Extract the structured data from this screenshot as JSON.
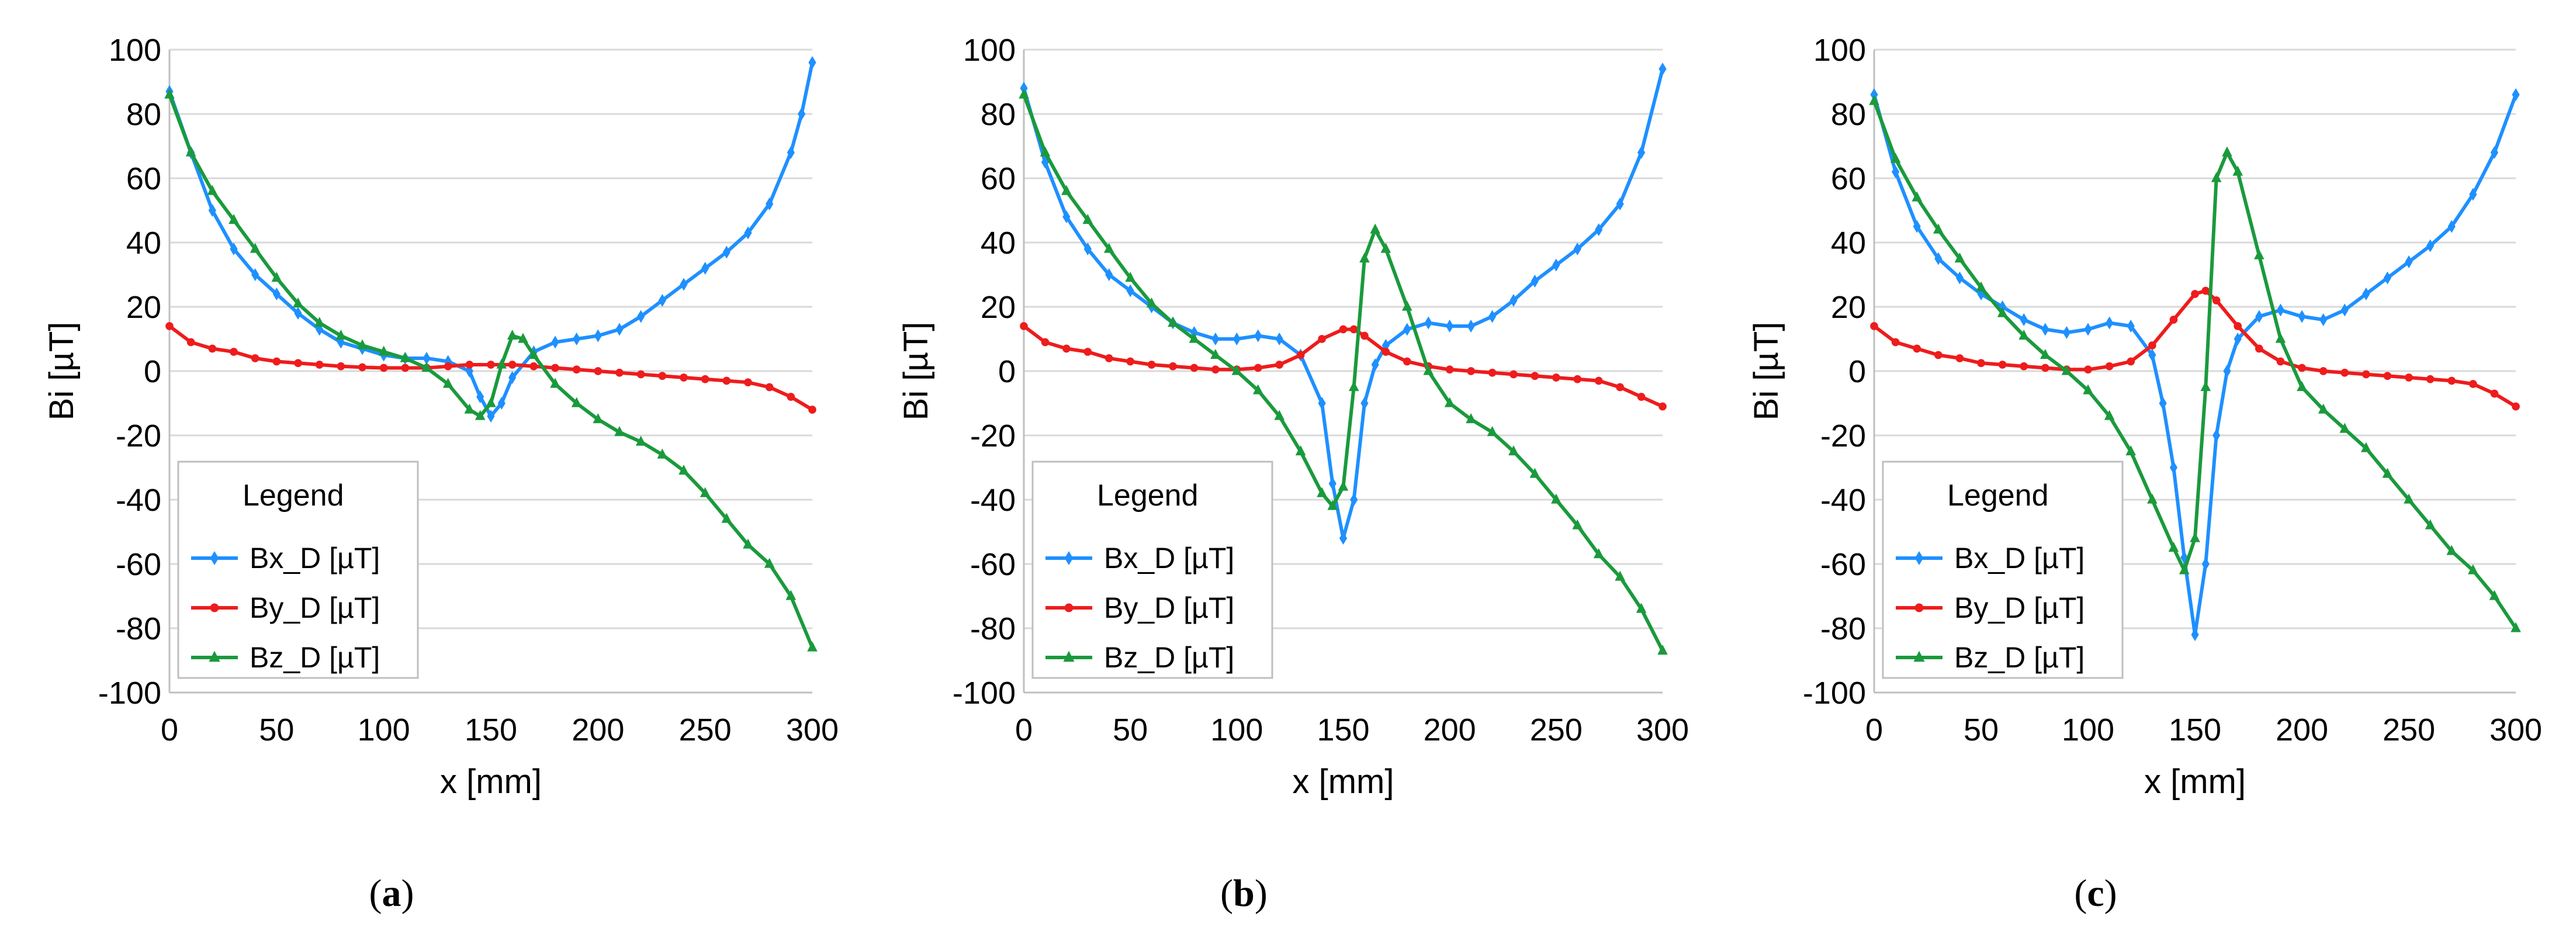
{
  "colors": {
    "bx": "#1e90ff",
    "by": "#ee1c1c",
    "bz": "#1a9a3c",
    "grid": "#d9d9d9",
    "axis": "#bfbfbf"
  },
  "chart_data": [
    {
      "type": "line",
      "panel_label": "a",
      "xlabel": "x [mm]",
      "ylabel": "Bi [µT]",
      "xlim": [
        0,
        300
      ],
      "ylim": [
        -100,
        100
      ],
      "xticks": [
        "0",
        "50",
        "100",
        "150",
        "200",
        "250",
        "300"
      ],
      "yticks": [
        "100",
        "80",
        "60",
        "40",
        "20",
        "0",
        "-20",
        "-40",
        "-60",
        "-80",
        "-100"
      ],
      "grid": true,
      "legend": {
        "title": "Legend",
        "position": "bottom-left"
      },
      "series": [
        {
          "name": "Bx_D [µT]",
          "marker": "diamond",
          "x": [
            0,
            10,
            20,
            30,
            40,
            50,
            60,
            70,
            80,
            90,
            100,
            110,
            120,
            130,
            140,
            145,
            150,
            155,
            160,
            170,
            180,
            190,
            200,
            210,
            220,
            230,
            240,
            250,
            260,
            270,
            280,
            290,
            295,
            300
          ],
          "y": [
            87,
            68,
            50,
            38,
            30,
            24,
            18,
            13,
            9,
            7,
            5,
            4,
            4,
            3,
            0,
            -8,
            -14,
            -10,
            -2,
            6,
            9,
            10,
            11,
            13,
            17,
            22,
            27,
            32,
            37,
            43,
            52,
            68,
            80,
            96
          ]
        },
        {
          "name": "By_D [µT]",
          "marker": "circle",
          "x": [
            0,
            10,
            20,
            30,
            40,
            50,
            60,
            70,
            80,
            90,
            100,
            110,
            120,
            130,
            140,
            150,
            160,
            170,
            180,
            190,
            200,
            210,
            220,
            230,
            240,
            250,
            260,
            270,
            280,
            290,
            300
          ],
          "y": [
            14,
            9,
            7,
            6,
            4,
            3,
            2.5,
            2,
            1.5,
            1.2,
            1,
            1,
            1,
            1.5,
            2,
            2,
            2,
            1.5,
            1,
            0.5,
            0,
            -0.5,
            -1,
            -1.5,
            -2,
            -2.5,
            -3,
            -3.5,
            -5,
            -8,
            -12
          ]
        },
        {
          "name": "Bz_D [µT]",
          "marker": "triangle",
          "x": [
            0,
            10,
            20,
            30,
            40,
            50,
            60,
            70,
            80,
            90,
            100,
            110,
            120,
            130,
            140,
            145,
            150,
            155,
            160,
            165,
            170,
            180,
            190,
            200,
            210,
            220,
            230,
            240,
            250,
            260,
            270,
            280,
            290,
            300
          ],
          "y": [
            86,
            68,
            56,
            47,
            38,
            29,
            21,
            15,
            11,
            8,
            6,
            4,
            1,
            -4,
            -12,
            -14,
            -10,
            2,
            11,
            10,
            5,
            -4,
            -10,
            -15,
            -19,
            -22,
            -26,
            -31,
            -38,
            -46,
            -54,
            -60,
            -70,
            -86
          ]
        }
      ]
    },
    {
      "type": "line",
      "panel_label": "b",
      "xlabel": "x [mm]",
      "ylabel": "Bi [µT]",
      "xlim": [
        0,
        300
      ],
      "ylim": [
        -100,
        100
      ],
      "xticks": [
        "0",
        "50",
        "100",
        "150",
        "200",
        "250",
        "300"
      ],
      "yticks": [
        "100",
        "80",
        "60",
        "40",
        "20",
        "0",
        "-20",
        "-40",
        "-60",
        "-80",
        "-100"
      ],
      "grid": true,
      "legend": {
        "title": "Legend",
        "position": "bottom-left"
      },
      "series": [
        {
          "name": "Bx_D [µT]",
          "marker": "diamond",
          "x": [
            0,
            10,
            20,
            30,
            40,
            50,
            60,
            70,
            80,
            90,
            100,
            110,
            120,
            130,
            140,
            145,
            150,
            155,
            160,
            165,
            170,
            180,
            190,
            200,
            210,
            220,
            230,
            240,
            250,
            260,
            270,
            280,
            290,
            300
          ],
          "y": [
            88,
            65,
            48,
            38,
            30,
            25,
            20,
            15,
            12,
            10,
            10,
            11,
            10,
            5,
            -10,
            -35,
            -52,
            -40,
            -10,
            2,
            8,
            13,
            15,
            14,
            14,
            17,
            22,
            28,
            33,
            38,
            44,
            52,
            68,
            94
          ]
        },
        {
          "name": "By_D [µT]",
          "marker": "circle",
          "x": [
            0,
            10,
            20,
            30,
            40,
            50,
            60,
            70,
            80,
            90,
            100,
            110,
            120,
            130,
            140,
            150,
            155,
            160,
            170,
            180,
            190,
            200,
            210,
            220,
            230,
            240,
            250,
            260,
            270,
            280,
            290,
            300
          ],
          "y": [
            14,
            9,
            7,
            6,
            4,
            3,
            2,
            1.5,
            1,
            0.5,
            0.5,
            1,
            2,
            5,
            10,
            13,
            13,
            11,
            6,
            3,
            1.5,
            0.5,
            0,
            -0.5,
            -1,
            -1.5,
            -2,
            -2.5,
            -3,
            -5,
            -8,
            -11
          ]
        },
        {
          "name": "Bz_D [µT]",
          "marker": "triangle",
          "x": [
            0,
            10,
            20,
            30,
            40,
            50,
            60,
            70,
            80,
            90,
            100,
            110,
            120,
            130,
            140,
            145,
            150,
            155,
            160,
            165,
            170,
            180,
            190,
            200,
            210,
            220,
            230,
            240,
            250,
            260,
            270,
            280,
            290,
            300
          ],
          "y": [
            86,
            68,
            56,
            47,
            38,
            29,
            21,
            15,
            10,
            5,
            0,
            -6,
            -14,
            -25,
            -38,
            -42,
            -36,
            -5,
            35,
            44,
            38,
            20,
            0,
            -10,
            -15,
            -19,
            -25,
            -32,
            -40,
            -48,
            -57,
            -64,
            -74,
            -87
          ]
        }
      ]
    },
    {
      "type": "line",
      "panel_label": "c",
      "xlabel": "x [mm]",
      "ylabel": "Bi [µT]",
      "xlim": [
        0,
        300
      ],
      "ylim": [
        -100,
        100
      ],
      "xticks": [
        "0",
        "50",
        "100",
        "150",
        "200",
        "250",
        "300"
      ],
      "yticks": [
        "100",
        "80",
        "60",
        "40",
        "20",
        "0",
        "-20",
        "-40",
        "-60",
        "-80",
        "-100"
      ],
      "grid": true,
      "legend": {
        "title": "Legend",
        "position": "bottom-left"
      },
      "series": [
        {
          "name": "Bx_D [µT]",
          "marker": "diamond",
          "x": [
            0,
            10,
            20,
            30,
            40,
            50,
            60,
            70,
            80,
            90,
            100,
            110,
            120,
            130,
            135,
            140,
            145,
            150,
            155,
            160,
            165,
            170,
            180,
            190,
            200,
            210,
            220,
            230,
            240,
            250,
            260,
            270,
            280,
            290,
            300
          ],
          "y": [
            86,
            62,
            45,
            35,
            29,
            24,
            20,
            16,
            13,
            12,
            13,
            15,
            14,
            5,
            -10,
            -30,
            -58,
            -82,
            -60,
            -20,
            0,
            10,
            17,
            19,
            17,
            16,
            19,
            24,
            29,
            34,
            39,
            45,
            55,
            68,
            86
          ]
        },
        {
          "name": "By_D [µT]",
          "marker": "circle",
          "x": [
            0,
            10,
            20,
            30,
            40,
            50,
            60,
            70,
            80,
            90,
            100,
            110,
            120,
            130,
            140,
            150,
            155,
            160,
            170,
            180,
            190,
            200,
            210,
            220,
            230,
            240,
            250,
            260,
            270,
            280,
            290,
            300
          ],
          "y": [
            14,
            9,
            7,
            5,
            4,
            2.5,
            2,
            1.5,
            1,
            0.5,
            0.5,
            1.5,
            3,
            8,
            16,
            24,
            25,
            22,
            14,
            7,
            3,
            1,
            0,
            -0.5,
            -1,
            -1.5,
            -2,
            -2.5,
            -3,
            -4,
            -7,
            -11
          ]
        },
        {
          "name": "Bz_D [µT]",
          "marker": "triangle",
          "x": [
            0,
            10,
            20,
            30,
            40,
            50,
            60,
            70,
            80,
            90,
            100,
            110,
            120,
            130,
            140,
            145,
            150,
            155,
            160,
            165,
            170,
            180,
            190,
            200,
            210,
            220,
            230,
            240,
            250,
            260,
            270,
            280,
            290,
            300
          ],
          "y": [
            84,
            66,
            54,
            44,
            35,
            26,
            18,
            11,
            5,
            0,
            -6,
            -14,
            -25,
            -40,
            -55,
            -62,
            -52,
            -5,
            60,
            68,
            62,
            36,
            10,
            -5,
            -12,
            -18,
            -24,
            -32,
            -40,
            -48,
            -56,
            -62,
            -70,
            -80
          ]
        }
      ]
    }
  ]
}
